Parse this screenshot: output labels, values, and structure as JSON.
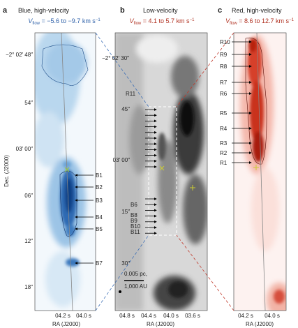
{
  "panels": [
    {
      "letter": "a",
      "title": "Blue, high-velocity",
      "subtitle": {
        "v": "V",
        "sub": "flow",
        "text": " = −5.6 to −9.7 km s",
        "sup": "−1"
      },
      "dec_ticks": [
        "−2° 02′ 48″",
        "54″",
        "03′ 00″",
        "06″",
        "12″",
        "18″"
      ],
      "ra_ticks": [
        "04.2 s",
        "04.0 s"
      ],
      "ra_label": "RA (J2000)",
      "dec_label": "Dec. (J2000)",
      "labels": [
        "B1",
        "B2",
        "B3",
        "B4",
        "B5",
        "B7"
      ]
    },
    {
      "letter": "b",
      "title": "Low-velocity",
      "subtitle": {
        "v": "V",
        "sub": "flow",
        "text": " = 4.1 to 5.7 km s",
        "sup": "−1"
      },
      "dec_ticks": [
        "−2° 02′ 30″",
        "45″",
        "03′ 00″",
        "15″",
        "30″"
      ],
      "ra_ticks": [
        "04.8 s",
        "04.4 s",
        "04.0 s",
        "03.6 s"
      ],
      "ra_label": "RA (J2000)",
      "labels": [
        "R11",
        "B6",
        "B8",
        "B9",
        "B10",
        "B11"
      ],
      "scale_bar": [
        "0.005 pc,",
        "1,000 AU"
      ]
    },
    {
      "letter": "c",
      "title": "Red, high-velocity",
      "subtitle": {
        "v": "V",
        "sub": "flow",
        "text": " = 8.6 to 12.7 km s",
        "sup": "−1"
      },
      "ra_ticks": [
        "04.2 s",
        "04.0 s"
      ],
      "ra_label": "RA (J2000)",
      "labels": [
        "R10",
        "R9",
        "R8",
        "R7",
        "R6",
        "R5",
        "R4",
        "R3",
        "R2",
        "R1"
      ]
    }
  ]
}
